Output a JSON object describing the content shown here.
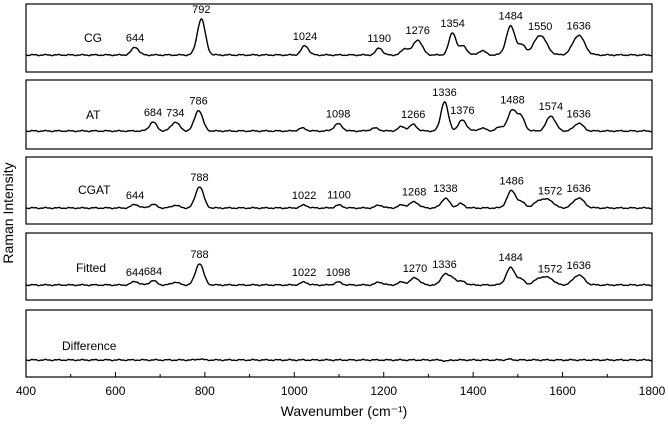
{
  "chart_data": {
    "type": "line",
    "xlabel": "Wavenumber (cm⁻¹)",
    "ylabel": "Raman Intensity",
    "xlim": [
      400,
      1800
    ],
    "x_ticks": [
      "400",
      "600",
      "800",
      "1000",
      "1200",
      "1400",
      "1600",
      "1800"
    ],
    "panels": [
      {
        "name": "CG",
        "peaks": [
          {
            "x": 644,
            "h": 0.22,
            "w": 8,
            "label": "644"
          },
          {
            "x": 792,
            "h": 1.0,
            "w": 9,
            "label": "792"
          },
          {
            "x": 1024,
            "h": 0.26,
            "w": 8,
            "label": "1024"
          },
          {
            "x": 1190,
            "h": 0.2,
            "w": 7,
            "label": "1190"
          },
          {
            "x": 1248,
            "h": 0.18,
            "w": 8,
            "label": ""
          },
          {
            "x": 1276,
            "h": 0.42,
            "w": 10,
            "label": "1276"
          },
          {
            "x": 1354,
            "h": 0.62,
            "w": 8,
            "label": "1354"
          },
          {
            "x": 1378,
            "h": 0.25,
            "w": 8,
            "label": ""
          },
          {
            "x": 1420,
            "h": 0.12,
            "w": 8,
            "label": ""
          },
          {
            "x": 1484,
            "h": 0.8,
            "w": 10,
            "label": "1484"
          },
          {
            "x": 1510,
            "h": 0.25,
            "w": 8,
            "label": ""
          },
          {
            "x": 1550,
            "h": 0.55,
            "w": 14,
            "label": "1550"
          },
          {
            "x": 1636,
            "h": 0.55,
            "w": 13,
            "label": "1636"
          }
        ]
      },
      {
        "name": "AT",
        "peaks": [
          {
            "x": 684,
            "h": 0.25,
            "w": 8,
            "label": "684"
          },
          {
            "x": 734,
            "h": 0.25,
            "w": 9,
            "label": "734"
          },
          {
            "x": 786,
            "h": 0.58,
            "w": 9,
            "label": "786"
          },
          {
            "x": 1018,
            "h": 0.08,
            "w": 8,
            "label": ""
          },
          {
            "x": 1098,
            "h": 0.2,
            "w": 9,
            "label": "1098"
          },
          {
            "x": 1180,
            "h": 0.08,
            "w": 9,
            "label": ""
          },
          {
            "x": 1240,
            "h": 0.12,
            "w": 8,
            "label": ""
          },
          {
            "x": 1266,
            "h": 0.18,
            "w": 8,
            "label": "1266"
          },
          {
            "x": 1336,
            "h": 0.82,
            "w": 8,
            "label": "1336"
          },
          {
            "x": 1376,
            "h": 0.3,
            "w": 9,
            "label": "1376"
          },
          {
            "x": 1420,
            "h": 0.08,
            "w": 8,
            "label": ""
          },
          {
            "x": 1460,
            "h": 0.1,
            "w": 9,
            "label": ""
          },
          {
            "x": 1488,
            "h": 0.58,
            "w": 10,
            "label": "1488"
          },
          {
            "x": 1508,
            "h": 0.35,
            "w": 8,
            "label": ""
          },
          {
            "x": 1574,
            "h": 0.42,
            "w": 10,
            "label": "1574"
          },
          {
            "x": 1636,
            "h": 0.22,
            "w": 10,
            "label": "1636"
          }
        ]
      },
      {
        "name": "CGAT",
        "peaks": [
          {
            "x": 644,
            "h": 0.1,
            "w": 8,
            "label": "644"
          },
          {
            "x": 684,
            "h": 0.1,
            "w": 8,
            "label": ""
          },
          {
            "x": 734,
            "h": 0.08,
            "w": 8,
            "label": ""
          },
          {
            "x": 788,
            "h": 0.6,
            "w": 9,
            "label": "788"
          },
          {
            "x": 1022,
            "h": 0.08,
            "w": 8,
            "label": "1022"
          },
          {
            "x": 1100,
            "h": 0.08,
            "w": 8,
            "label": "1100"
          },
          {
            "x": 1190,
            "h": 0.08,
            "w": 8,
            "label": ""
          },
          {
            "x": 1240,
            "h": 0.08,
            "w": 8,
            "label": ""
          },
          {
            "x": 1268,
            "h": 0.17,
            "w": 10,
            "label": "1268"
          },
          {
            "x": 1338,
            "h": 0.27,
            "w": 9,
            "label": "1338"
          },
          {
            "x": 1372,
            "h": 0.12,
            "w": 8,
            "label": ""
          },
          {
            "x": 1486,
            "h": 0.48,
            "w": 10,
            "label": "1486"
          },
          {
            "x": 1510,
            "h": 0.14,
            "w": 8,
            "label": ""
          },
          {
            "x": 1550,
            "h": 0.22,
            "w": 12,
            "label": ""
          },
          {
            "x": 1572,
            "h": 0.18,
            "w": 10,
            "label": "1572"
          },
          {
            "x": 1636,
            "h": 0.28,
            "w": 12,
            "label": "1636"
          }
        ]
      },
      {
        "name": "Fitted",
        "peaks": [
          {
            "x": 644,
            "h": 0.1,
            "w": 8,
            "label": "644"
          },
          {
            "x": 684,
            "h": 0.12,
            "w": 8,
            "label": "684"
          },
          {
            "x": 734,
            "h": 0.08,
            "w": 8,
            "label": ""
          },
          {
            "x": 788,
            "h": 0.6,
            "w": 9,
            "label": "788"
          },
          {
            "x": 1022,
            "h": 0.08,
            "w": 8,
            "label": "1022"
          },
          {
            "x": 1098,
            "h": 0.08,
            "w": 8,
            "label": "1098"
          },
          {
            "x": 1190,
            "h": 0.08,
            "w": 8,
            "label": ""
          },
          {
            "x": 1240,
            "h": 0.08,
            "w": 8,
            "label": ""
          },
          {
            "x": 1270,
            "h": 0.2,
            "w": 10,
            "label": "1270"
          },
          {
            "x": 1336,
            "h": 0.3,
            "w": 8,
            "label": "1336"
          },
          {
            "x": 1354,
            "h": 0.2,
            "w": 8,
            "label": ""
          },
          {
            "x": 1376,
            "h": 0.1,
            "w": 8,
            "label": ""
          },
          {
            "x": 1484,
            "h": 0.48,
            "w": 10,
            "label": "1484"
          },
          {
            "x": 1508,
            "h": 0.14,
            "w": 8,
            "label": ""
          },
          {
            "x": 1550,
            "h": 0.2,
            "w": 12,
            "label": ""
          },
          {
            "x": 1572,
            "h": 0.16,
            "w": 10,
            "label": "1572"
          },
          {
            "x": 1636,
            "h": 0.28,
            "w": 12,
            "label": "1636"
          }
        ]
      },
      {
        "name": "Difference",
        "peaks": [
          {
            "x": 788,
            "h": 0.03,
            "w": 6,
            "label": ""
          },
          {
            "x": 1340,
            "h": -0.03,
            "w": 6,
            "label": ""
          },
          {
            "x": 1480,
            "h": 0.02,
            "w": 6,
            "label": ""
          }
        ]
      }
    ]
  }
}
